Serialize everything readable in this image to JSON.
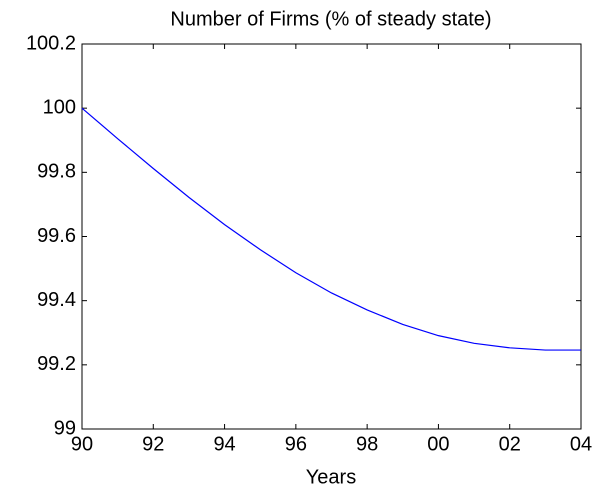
{
  "chart_data": {
    "type": "line",
    "title": "Number of Firms (% of steady state)",
    "x_label": "Years",
    "categories": [
      "90",
      null,
      "92",
      null,
      "94",
      null,
      "96",
      null,
      "98",
      null,
      "00",
      null,
      "02",
      null,
      "04"
    ],
    "series": [
      {
        "color": "#0000ff",
        "values": [
          100,
          99.905,
          99.812,
          99.722,
          99.637,
          99.559,
          99.487,
          99.424,
          99.371,
          99.326,
          99.291,
          99.267,
          99.253,
          99.246,
          99.246
        ]
      }
    ],
    "ylim": [
      99,
      100.2
    ],
    "yticks": [
      99,
      99.2,
      99.4,
      99.6,
      99.8,
      100,
      100.2
    ],
    "grid": false
  }
}
